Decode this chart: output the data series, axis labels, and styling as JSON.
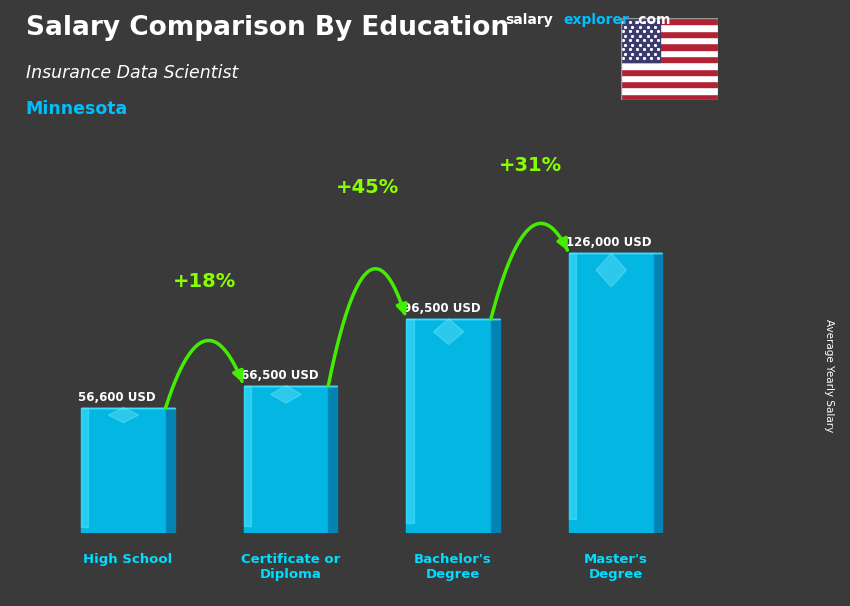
{
  "title_main": "Salary Comparison By Education",
  "title_sub": "Insurance Data Scientist",
  "title_location": "Minnesota",
  "ylabel": "Average Yearly Salary",
  "categories": [
    "High School",
    "Certificate or\nDiploma",
    "Bachelor's\nDegree",
    "Master's\nDegree"
  ],
  "values": [
    56600,
    66500,
    96500,
    126000
  ],
  "labels": [
    "56,600 USD",
    "66,500 USD",
    "96,500 USD",
    "126,000 USD"
  ],
  "pct_labels": [
    "+18%",
    "+45%",
    "+31%"
  ],
  "bar_color_front": "#00C0F0",
  "bar_color_side": "#0088BB",
  "bar_color_top": "#44DDFF",
  "bar_highlight": "#55E8FF",
  "bg_color": "#3a3a3a",
  "title_color": "#ffffff",
  "subtitle_color": "#ffffff",
  "location_color": "#00BFFF",
  "label_color": "#ffffff",
  "pct_color": "#88FF00",
  "arrow_color": "#44EE00",
  "xlabel_color": "#00DDFF",
  "website_text1": "salary",
  "website_text2": "explorer",
  "website_text3": ".com",
  "website_color1": "#ffffff",
  "website_color2": "#00BFFF",
  "website_color3": "#ffffff"
}
